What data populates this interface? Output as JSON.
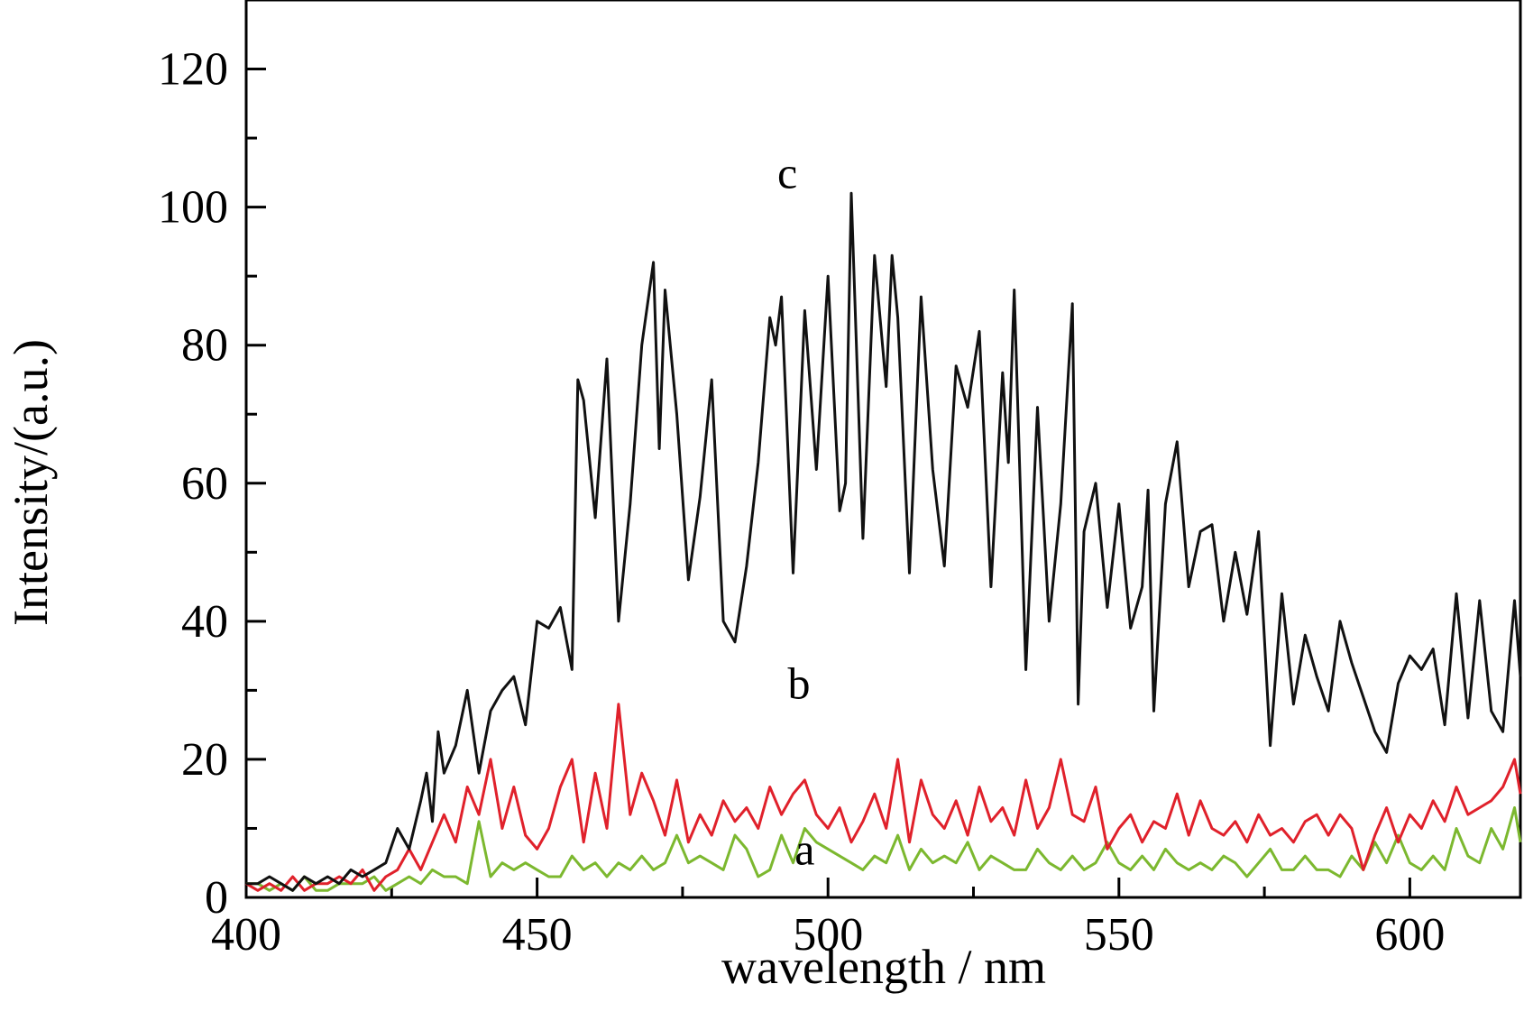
{
  "chart_data": {
    "type": "line",
    "title": "",
    "xlabel": "wavelength / nm",
    "ylabel": "Intensity/(a.u.)",
    "xlim": [
      400,
      619
    ],
    "ylim": [
      0,
      130
    ],
    "xticks": [
      400,
      450,
      500,
      550,
      600
    ],
    "xtick_labels": [
      "400",
      "450",
      "500",
      "550",
      "600"
    ],
    "yticks": [
      0,
      20,
      40,
      60,
      80,
      100,
      120
    ],
    "ytick_labels": [
      "0",
      "20",
      "40",
      "60",
      "80",
      "100",
      "120"
    ],
    "x_minor_step": 25,
    "y_minor_step": 10,
    "grid": false,
    "legend": "none",
    "series": [
      {
        "name": "a",
        "color": "#7cb82f",
        "label_at": [
          496,
          7
        ],
        "x": [
          400,
          402,
          404,
          406,
          408,
          410,
          412,
          414,
          416,
          418,
          420,
          422,
          424,
          426,
          428,
          430,
          432,
          434,
          436,
          438,
          440,
          442,
          444,
          446,
          448,
          450,
          452,
          454,
          456,
          458,
          460,
          462,
          464,
          466,
          468,
          470,
          472,
          474,
          476,
          478,
          480,
          482,
          484,
          486,
          488,
          490,
          492,
          494,
          496,
          498,
          500,
          502,
          504,
          506,
          508,
          510,
          512,
          514,
          516,
          518,
          520,
          522,
          524,
          526,
          528,
          530,
          532,
          534,
          536,
          538,
          540,
          542,
          544,
          546,
          548,
          550,
          552,
          554,
          556,
          558,
          560,
          562,
          564,
          566,
          568,
          570,
          572,
          574,
          576,
          578,
          580,
          582,
          584,
          586,
          588,
          590,
          592,
          594,
          596,
          598,
          600,
          602,
          604,
          606,
          608,
          610,
          612,
          614,
          616,
          618,
          619
        ],
        "values": [
          2,
          2,
          1,
          2,
          1,
          3,
          1,
          1,
          2,
          2,
          2,
          3,
          1,
          2,
          3,
          2,
          4,
          3,
          3,
          2,
          11,
          3,
          5,
          4,
          5,
          4,
          3,
          3,
          6,
          4,
          5,
          3,
          5,
          4,
          6,
          4,
          5,
          9,
          5,
          6,
          5,
          4,
          9,
          7,
          3,
          4,
          9,
          5,
          10,
          8,
          7,
          6,
          5,
          4,
          6,
          5,
          9,
          4,
          7,
          5,
          6,
          5,
          8,
          4,
          6,
          5,
          4,
          4,
          7,
          5,
          4,
          6,
          4,
          5,
          8,
          5,
          4,
          6,
          4,
          7,
          5,
          4,
          5,
          4,
          6,
          5,
          3,
          5,
          7,
          4,
          4,
          6,
          4,
          4,
          3,
          6,
          4,
          8,
          5,
          9,
          5,
          4,
          6,
          4,
          10,
          6,
          5,
          10,
          7,
          13,
          8
        ]
      },
      {
        "name": "b",
        "color": "#e0212b",
        "label_at": [
          495,
          31
        ],
        "x": [
          400,
          402,
          404,
          406,
          408,
          410,
          412,
          414,
          416,
          418,
          420,
          422,
          424,
          426,
          428,
          430,
          432,
          434,
          436,
          438,
          440,
          442,
          444,
          446,
          448,
          450,
          452,
          454,
          456,
          458,
          460,
          462,
          464,
          466,
          468,
          470,
          472,
          474,
          476,
          478,
          480,
          482,
          484,
          486,
          488,
          490,
          492,
          494,
          496,
          498,
          500,
          502,
          504,
          506,
          508,
          510,
          512,
          514,
          516,
          518,
          520,
          522,
          524,
          526,
          528,
          530,
          532,
          534,
          536,
          538,
          540,
          542,
          544,
          546,
          548,
          550,
          552,
          554,
          556,
          558,
          560,
          562,
          564,
          566,
          568,
          570,
          572,
          574,
          576,
          578,
          580,
          582,
          584,
          586,
          588,
          590,
          592,
          594,
          596,
          598,
          600,
          602,
          604,
          606,
          608,
          610,
          612,
          614,
          616,
          618,
          619
        ],
        "values": [
          2,
          1,
          2,
          1,
          3,
          1,
          2,
          2,
          3,
          2,
          4,
          1,
          3,
          4,
          7,
          4,
          8,
          12,
          8,
          16,
          12,
          20,
          10,
          16,
          9,
          7,
          10,
          16,
          20,
          8,
          18,
          10,
          28,
          12,
          18,
          14,
          9,
          17,
          8,
          12,
          9,
          14,
          11,
          13,
          10,
          16,
          12,
          15,
          17,
          12,
          10,
          13,
          8,
          11,
          15,
          10,
          20,
          8,
          17,
          12,
          10,
          14,
          9,
          16,
          11,
          13,
          9,
          17,
          10,
          13,
          20,
          12,
          11,
          16,
          7,
          10,
          12,
          8,
          11,
          10,
          15,
          9,
          14,
          10,
          9,
          11,
          8,
          12,
          9,
          10,
          8,
          11,
          12,
          9,
          12,
          10,
          4,
          9,
          13,
          8,
          12,
          10,
          14,
          11,
          16,
          12,
          13,
          14,
          16,
          20,
          15
        ]
      },
      {
        "name": "c",
        "color": "#111111",
        "label_at": [
          493,
          105
        ],
        "x": [
          400,
          402,
          404,
          406,
          408,
          410,
          412,
          414,
          416,
          418,
          420,
          422,
          424,
          426,
          428,
          430,
          431,
          432,
          433,
          434,
          436,
          438,
          440,
          442,
          444,
          446,
          448,
          450,
          452,
          454,
          456,
          457,
          458,
          460,
          462,
          464,
          466,
          468,
          470,
          471,
          472,
          474,
          476,
          478,
          480,
          482,
          484,
          486,
          488,
          490,
          491,
          492,
          494,
          496,
          498,
          500,
          502,
          503,
          504,
          506,
          508,
          510,
          511,
          512,
          514,
          516,
          518,
          520,
          522,
          524,
          526,
          528,
          530,
          531,
          532,
          534,
          536,
          538,
          540,
          542,
          543,
          544,
          546,
          548,
          550,
          552,
          554,
          555,
          556,
          558,
          560,
          562,
          564,
          566,
          568,
          570,
          572,
          574,
          576,
          578,
          580,
          582,
          584,
          586,
          588,
          590,
          592,
          594,
          596,
          598,
          600,
          602,
          604,
          606,
          608,
          610,
          612,
          614,
          616,
          618,
          619
        ],
        "values": [
          2,
          2,
          3,
          2,
          1,
          3,
          2,
          3,
          2,
          4,
          3,
          4,
          5,
          10,
          7,
          14,
          18,
          11,
          24,
          18,
          22,
          30,
          18,
          27,
          30,
          32,
          25,
          40,
          39,
          42,
          33,
          75,
          72,
          55,
          78,
          40,
          57,
          80,
          92,
          65,
          88,
          70,
          46,
          58,
          75,
          40,
          37,
          48,
          63,
          84,
          80,
          87,
          47,
          85,
          62,
          90,
          56,
          60,
          102,
          52,
          93,
          74,
          93,
          84,
          47,
          87,
          62,
          48,
          77,
          71,
          82,
          45,
          76,
          63,
          88,
          33,
          71,
          40,
          57,
          86,
          28,
          53,
          60,
          42,
          57,
          39,
          45,
          59,
          27,
          57,
          66,
          45,
          53,
          54,
          40,
          50,
          41,
          53,
          22,
          44,
          28,
          38,
          32,
          27,
          40,
          34,
          29,
          24,
          21,
          31,
          35,
          33,
          36,
          25,
          44,
          26,
          43,
          27,
          24,
          43,
          32
        ]
      }
    ]
  }
}
